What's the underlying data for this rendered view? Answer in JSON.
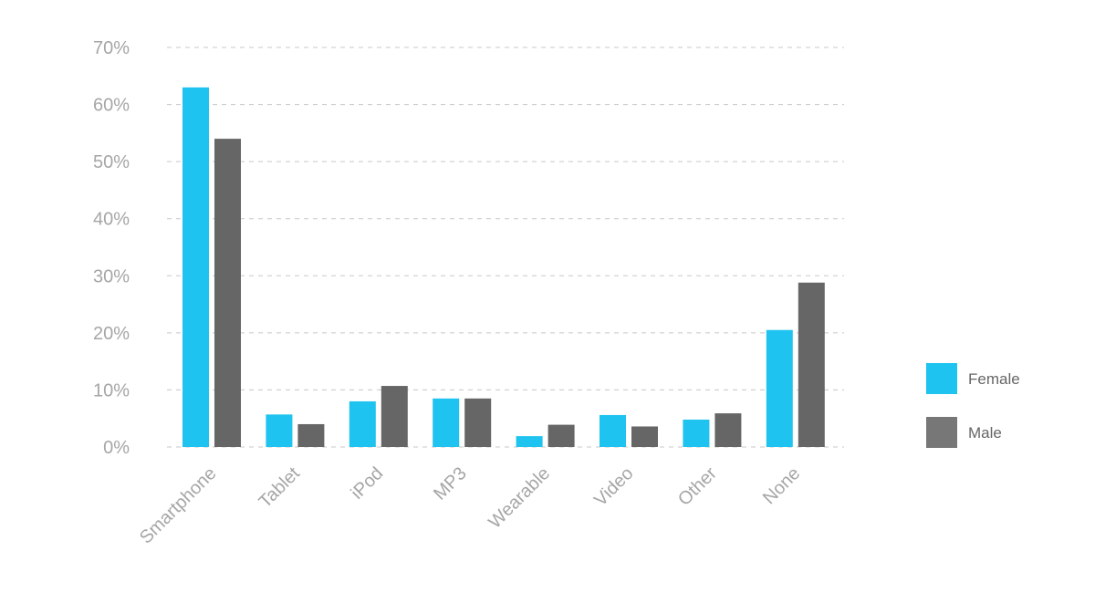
{
  "chart_data": {
    "type": "bar",
    "title": "",
    "xlabel": "",
    "ylabel": "",
    "categories": [
      "Smartphone",
      "Tablet",
      "iPod",
      "MP3",
      "Wearable",
      "Video",
      "Other",
      "None"
    ],
    "series": [
      {
        "name": "Female",
        "color": "#1fc3ef",
        "values": [
          63,
          5.7,
          8,
          8.5,
          1.9,
          5.6,
          4.8,
          20.5
        ]
      },
      {
        "name": "Male",
        "color": "#666666",
        "values": [
          54,
          4,
          10.7,
          8.5,
          3.9,
          3.6,
          5.9,
          28.8
        ]
      }
    ],
    "ylim": [
      0,
      70
    ],
    "yticks": [
      0,
      10,
      20,
      30,
      40,
      50,
      60,
      70
    ],
    "ytick_labels": [
      "0%",
      "10%",
      "20%",
      "30%",
      "40%",
      "50%",
      "60%",
      "70%"
    ],
    "grid": true,
    "legend_position": "right",
    "legend_colors": [
      "#1fc3ef",
      "#777777"
    ]
  }
}
